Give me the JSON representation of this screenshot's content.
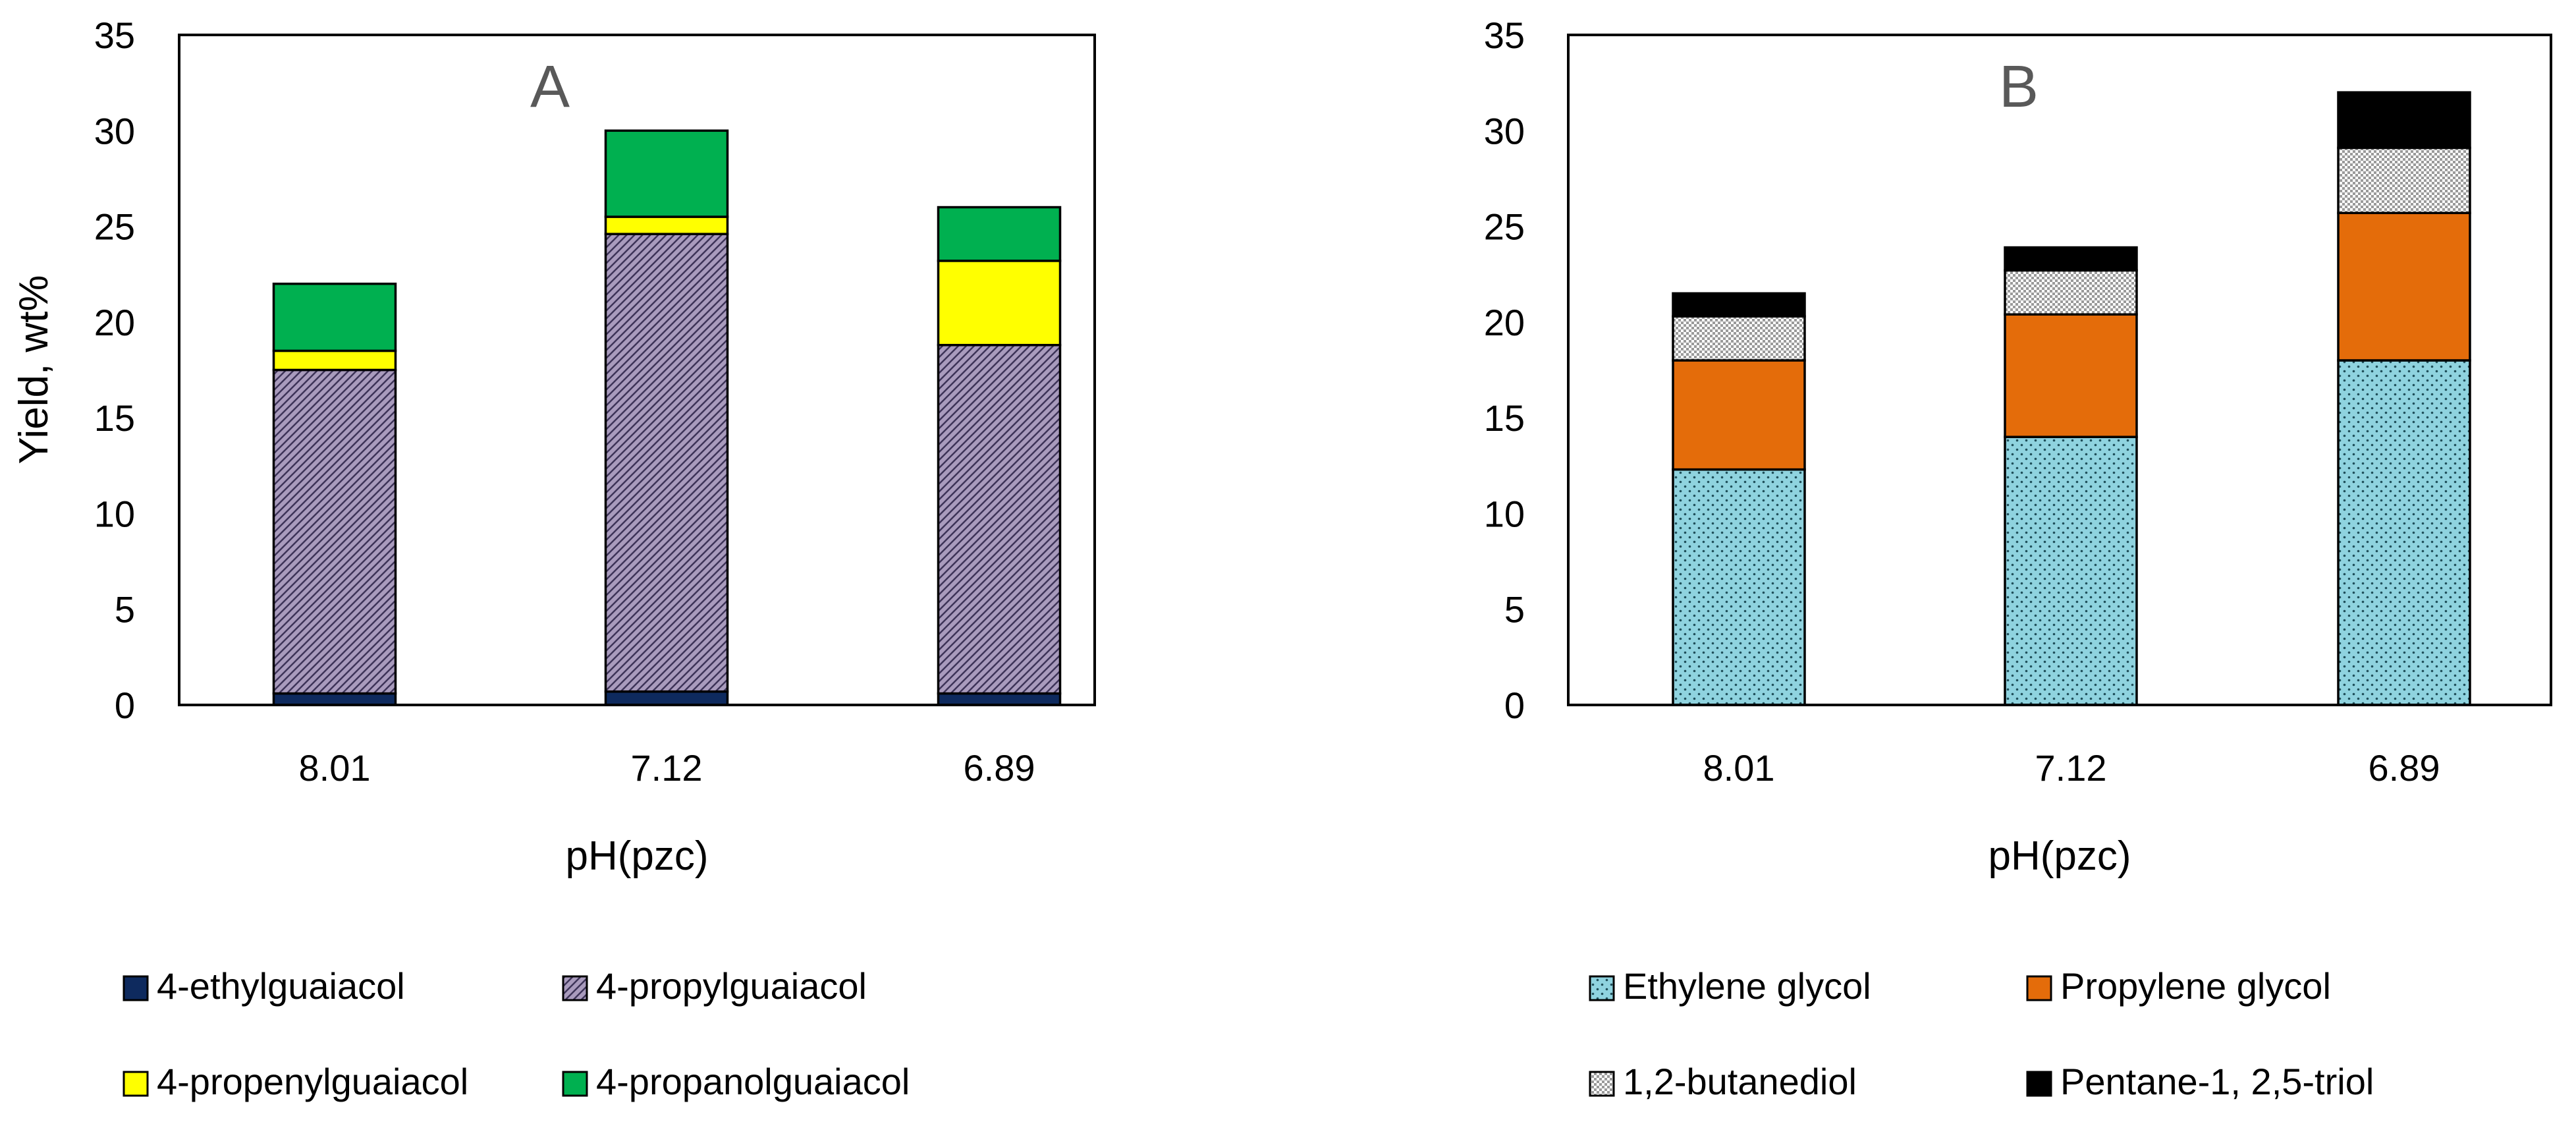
{
  "colors": {
    "ethylguaiacol": "#0e2a5e",
    "propylguaiacol": "#a99bbd",
    "propenylguaiacol": "#ffff00",
    "propanolguaiacol": "#00b050",
    "ethylene_glycol": "#8fd3df",
    "propylene_glycol": "#e46c0a",
    "butanediol": "#e6e6e6",
    "pentanetriol": "#000000"
  },
  "chart_data": [
    {
      "type": "bar",
      "stacked": true,
      "panel_label": "A",
      "categories": [
        "8.01",
        "7.12",
        "6.89"
      ],
      "xlabel": "pH(pzc)",
      "ylabel": "Yield, wt%",
      "ylim": [
        0,
        35
      ],
      "yticks": [
        "0",
        "5",
        "10",
        "15",
        "20",
        "25",
        "30",
        "35"
      ],
      "series": [
        {
          "name": "4-ethylguaiacol",
          "values": [
            0.6,
            0.7,
            0.6
          ],
          "color": "#0e2a5e",
          "pattern": "solid"
        },
        {
          "name": "4-propylguaiacol",
          "values": [
            16.9,
            23.9,
            18.2
          ],
          "color": "#a99bbd",
          "pattern": "hatch"
        },
        {
          "name": "4-propenylguaiacol",
          "values": [
            1.0,
            0.9,
            4.4
          ],
          "color": "#ffff00",
          "pattern": "solid"
        },
        {
          "name": "4-propanolguaiacol",
          "values": [
            3.5,
            4.5,
            2.8
          ],
          "color": "#00b050",
          "pattern": "solid"
        }
      ],
      "legend": "bottom"
    },
    {
      "type": "bar",
      "stacked": true,
      "panel_label": "B",
      "categories": [
        "8.01",
        "7.12",
        "6.89"
      ],
      "xlabel": "pH(pzc)",
      "ylabel": "",
      "ylim": [
        0,
        35
      ],
      "yticks": [
        "0",
        "5",
        "10",
        "15",
        "20",
        "25",
        "30",
        "35"
      ],
      "series": [
        {
          "name": "Ethylene glycol",
          "values": [
            12.3,
            14.0,
            18.0
          ],
          "color": "#8fd3df",
          "pattern": "dots"
        },
        {
          "name": "Propylene glycol",
          "values": [
            5.7,
            6.4,
            7.7
          ],
          "color": "#e46c0a",
          "pattern": "solid"
        },
        {
          "name": "1,2-butanediol",
          "values": [
            2.3,
            2.3,
            3.4
          ],
          "color": "#e6e6e6",
          "pattern": "checker"
        },
        {
          "name": "Pentane-1, 2,5-triol",
          "values": [
            1.2,
            1.2,
            2.9
          ],
          "color": "#000000",
          "pattern": "solid"
        }
      ],
      "legend": "bottom"
    }
  ]
}
